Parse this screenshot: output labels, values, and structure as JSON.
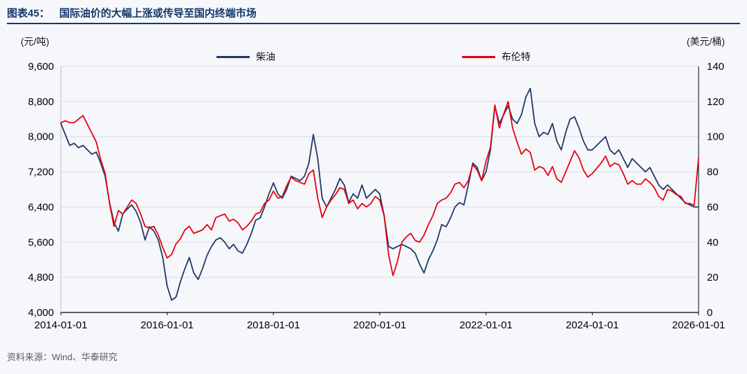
{
  "header": {
    "figure_label": "图表45：",
    "title": "国际油价的大幅上涨或传导至国内终端市场"
  },
  "axes": {
    "left_unit": "(元/吨)",
    "right_unit": "(美元/桶)",
    "left_ticks": [
      "9,600",
      "8,800",
      "8,000",
      "7,200",
      "6,400",
      "5,600",
      "4,800",
      "4,000"
    ],
    "right_ticks": [
      "140",
      "120",
      "100",
      "80",
      "60",
      "40",
      "20",
      "0"
    ],
    "x_ticks": [
      "2014-01-01",
      "2016-01-01",
      "2018-01-01",
      "2020-01-01",
      "2022-01-01",
      "2024-01-01",
      "2026-01-01"
    ]
  },
  "legend": [
    {
      "label": "柴油",
      "color": "#1F3864"
    },
    {
      "label": "布伦特",
      "color": "#E60012"
    }
  ],
  "footer": {
    "source": "资料来源：Wind、华泰研究"
  },
  "colors": {
    "title_navy": "#15376B",
    "diesel_blue": "#1F3864",
    "brent_red": "#E60012",
    "grid": "#D9DCE0",
    "axis": "#000000",
    "background": "#F5F7FA"
  },
  "chart_data": {
    "type": "line",
    "title": "国际油价的大幅上涨或传导至国内终端市场",
    "x_start": "2014-01",
    "x_interval": "monthly",
    "x_tick_labels": [
      "2014-01-01",
      "2016-01-01",
      "2018-01-01",
      "2020-01-01",
      "2022-01-01",
      "2024-01-01",
      "2026-01-01"
    ],
    "left_axis": {
      "label": "元/吨",
      "range": [
        4000,
        9600
      ],
      "tick_step": 800
    },
    "right_axis": {
      "label": "美元/桶",
      "range": [
        0,
        140
      ],
      "tick_step": 20
    },
    "grid": true,
    "legend_position": "top",
    "series": [
      {
        "name": "柴油",
        "key": "diesel",
        "axis": "left",
        "color": "#1F3864",
        "values": [
          8300,
          8050,
          7800,
          7850,
          7750,
          7800,
          7700,
          7600,
          7650,
          7400,
          7100,
          6500,
          6050,
          5850,
          6250,
          6350,
          6450,
          6300,
          6050,
          5650,
          5950,
          5850,
          5650,
          5250,
          4600,
          4280,
          4350,
          4700,
          5000,
          5250,
          4900,
          4750,
          5000,
          5300,
          5500,
          5650,
          5700,
          5600,
          5450,
          5550,
          5400,
          5350,
          5550,
          5800,
          6100,
          6150,
          6400,
          6700,
          6950,
          6700,
          6600,
          6800,
          7100,
          7050,
          7000,
          7100,
          7400,
          8050,
          7500,
          6600,
          6400,
          6600,
          6800,
          7050,
          6900,
          6500,
          6700,
          6600,
          6900,
          6600,
          6700,
          6800,
          6700,
          6200,
          5500,
          5450,
          5500,
          5550,
          5500,
          5450,
          5350,
          5100,
          4900,
          5200,
          5400,
          5650,
          6000,
          5950,
          6150,
          6400,
          6500,
          6450,
          6900,
          7400,
          7300,
          7000,
          7200,
          7700,
          8700,
          8300,
          8500,
          8700,
          8400,
          8300,
          8500,
          8900,
          9100,
          8300,
          8000,
          8100,
          8050,
          8300,
          7900,
          7700,
          8100,
          8400,
          8450,
          8200,
          7900,
          7700,
          7700,
          7800,
          7900,
          8000,
          7700,
          7600,
          7700,
          7500,
          7300,
          7500,
          7400,
          7300,
          7200,
          7300,
          7100,
          6900,
          6800,
          6900,
          6800,
          6700,
          6600,
          6500,
          6450,
          6400,
          6400
        ]
      },
      {
        "name": "布伦特",
        "key": "brent",
        "axis": "right",
        "color": "#E60012",
        "values": [
          108,
          109,
          108,
          108,
          110,
          112,
          107,
          102,
          97,
          87,
          79,
          62,
          49,
          58,
          56,
          60,
          64,
          62,
          56,
          49,
          48,
          49,
          44,
          37,
          31,
          33,
          39,
          42,
          47,
          49,
          45,
          46,
          47,
          50,
          47,
          54,
          55,
          56,
          52,
          53,
          51,
          47,
          49,
          52,
          56,
          57,
          62,
          64,
          69,
          65,
          66,
          72,
          77,
          75,
          74,
          73,
          79,
          81,
          65,
          54,
          60,
          64,
          67,
          71,
          70,
          62,
          64,
          59,
          62,
          60,
          62,
          66,
          64,
          55,
          33,
          21,
          29,
          40,
          43,
          45,
          41,
          40,
          44,
          50,
          55,
          62,
          64,
          65,
          68,
          73,
          74,
          71,
          75,
          84,
          81,
          75,
          86,
          94,
          118,
          105,
          113,
          120,
          105,
          97,
          90,
          93,
          91,
          81,
          83,
          82,
          78,
          83,
          76,
          74,
          80,
          86,
          92,
          88,
          81,
          77,
          79,
          82,
          85,
          89,
          83,
          85,
          84,
          79,
          73,
          75,
          73,
          73,
          76,
          74,
          71,
          66,
          64,
          70,
          69,
          67,
          66,
          62,
          62,
          61,
          88
        ]
      }
    ]
  }
}
